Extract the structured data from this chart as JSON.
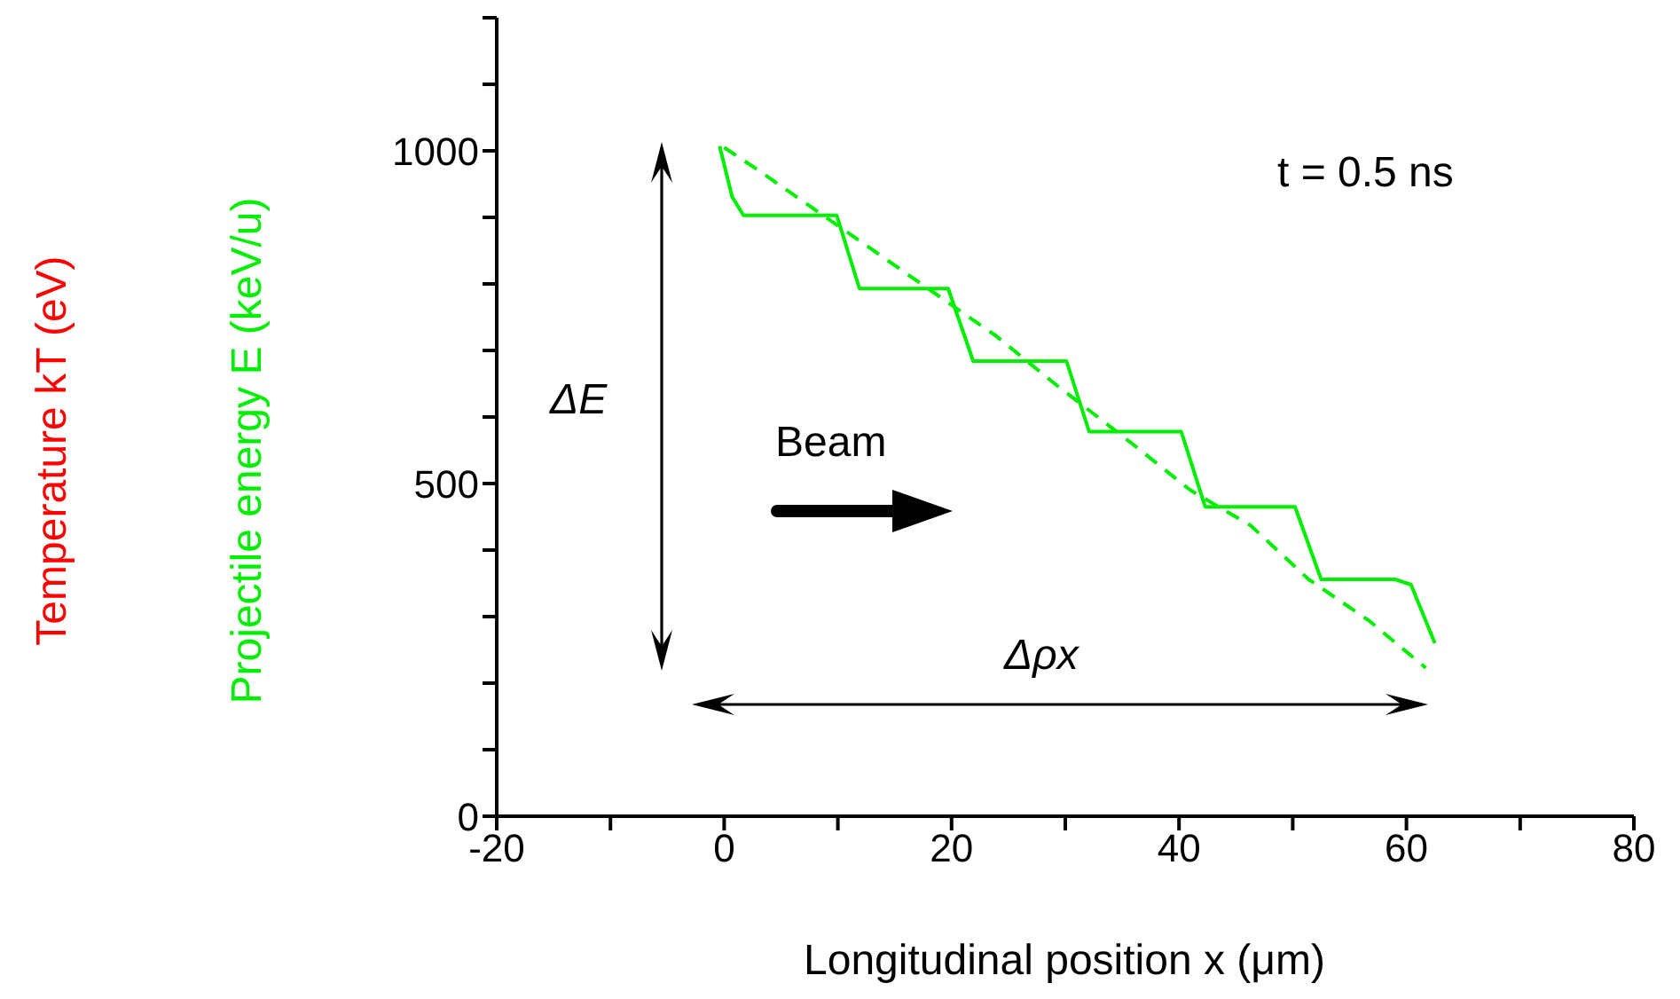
{
  "chart_data": {
    "type": "line",
    "xlabel": "Longitudinal position x (μm)",
    "ylabel": "Projectile energy E (keV/u)",
    "annotations": [
      "t = 0.5 ns",
      "Beam",
      "ΔE",
      "Δρx",
      "Temperature kT (eV)"
    ],
    "xlim": [
      -20,
      80
    ],
    "xticks": [
      -20,
      {
        "value": -10,
        "label": null
      },
      0,
      {
        "value": 10,
        "label": null
      },
      20,
      {
        "value": 30,
        "label": null
      },
      40,
      {
        "value": 50,
        "label": null
      },
      60,
      {
        "value": 70,
        "label": null
      },
      80
    ],
    "ylim": [
      0,
      1200
    ],
    "yticks": [
      0,
      {
        "value": 100,
        "label": null
      },
      {
        "value": 200,
        "label": null
      },
      {
        "value": 300,
        "label": null
      },
      {
        "value": 400,
        "label": null
      },
      500,
      {
        "value": 600,
        "label": null
      },
      {
        "value": 700,
        "label": null
      },
      {
        "value": 800,
        "label": null
      },
      {
        "value": 900,
        "label": null
      },
      1000,
      {
        "value": 1100,
        "label": null
      },
      {
        "value": 1200,
        "label": null
      }
    ],
    "marker": "none",
    "series": [
      {
        "color": "#00ee00",
        "line_style": "solid",
        "x": [
          -0.4,
          0.7,
          1.7,
          9.9,
          11.9,
          19.7,
          21.9,
          30.1,
          32.1,
          40.2,
          42.3,
          50.2,
          52.5,
          59.0,
          60.4,
          62.5
        ],
        "values": [
          1007,
          931,
          903,
          903,
          793,
          793,
          684,
          684,
          578,
          578,
          465,
          465,
          356,
          356,
          348,
          260
        ]
      },
      {
        "color": "#00ee00",
        "line_style": "dashed",
        "x": [
          0,
          3,
          8.2,
          13.4,
          18.6,
          23.9,
          29,
          35.8,
          41,
          46.3,
          51.4,
          56.7,
          61.7
        ],
        "values": [
          1005,
          971,
          909,
          847,
          785,
          722,
          651,
          561,
          490,
          437,
          356,
          294,
          223
        ]
      }
    ]
  }
}
